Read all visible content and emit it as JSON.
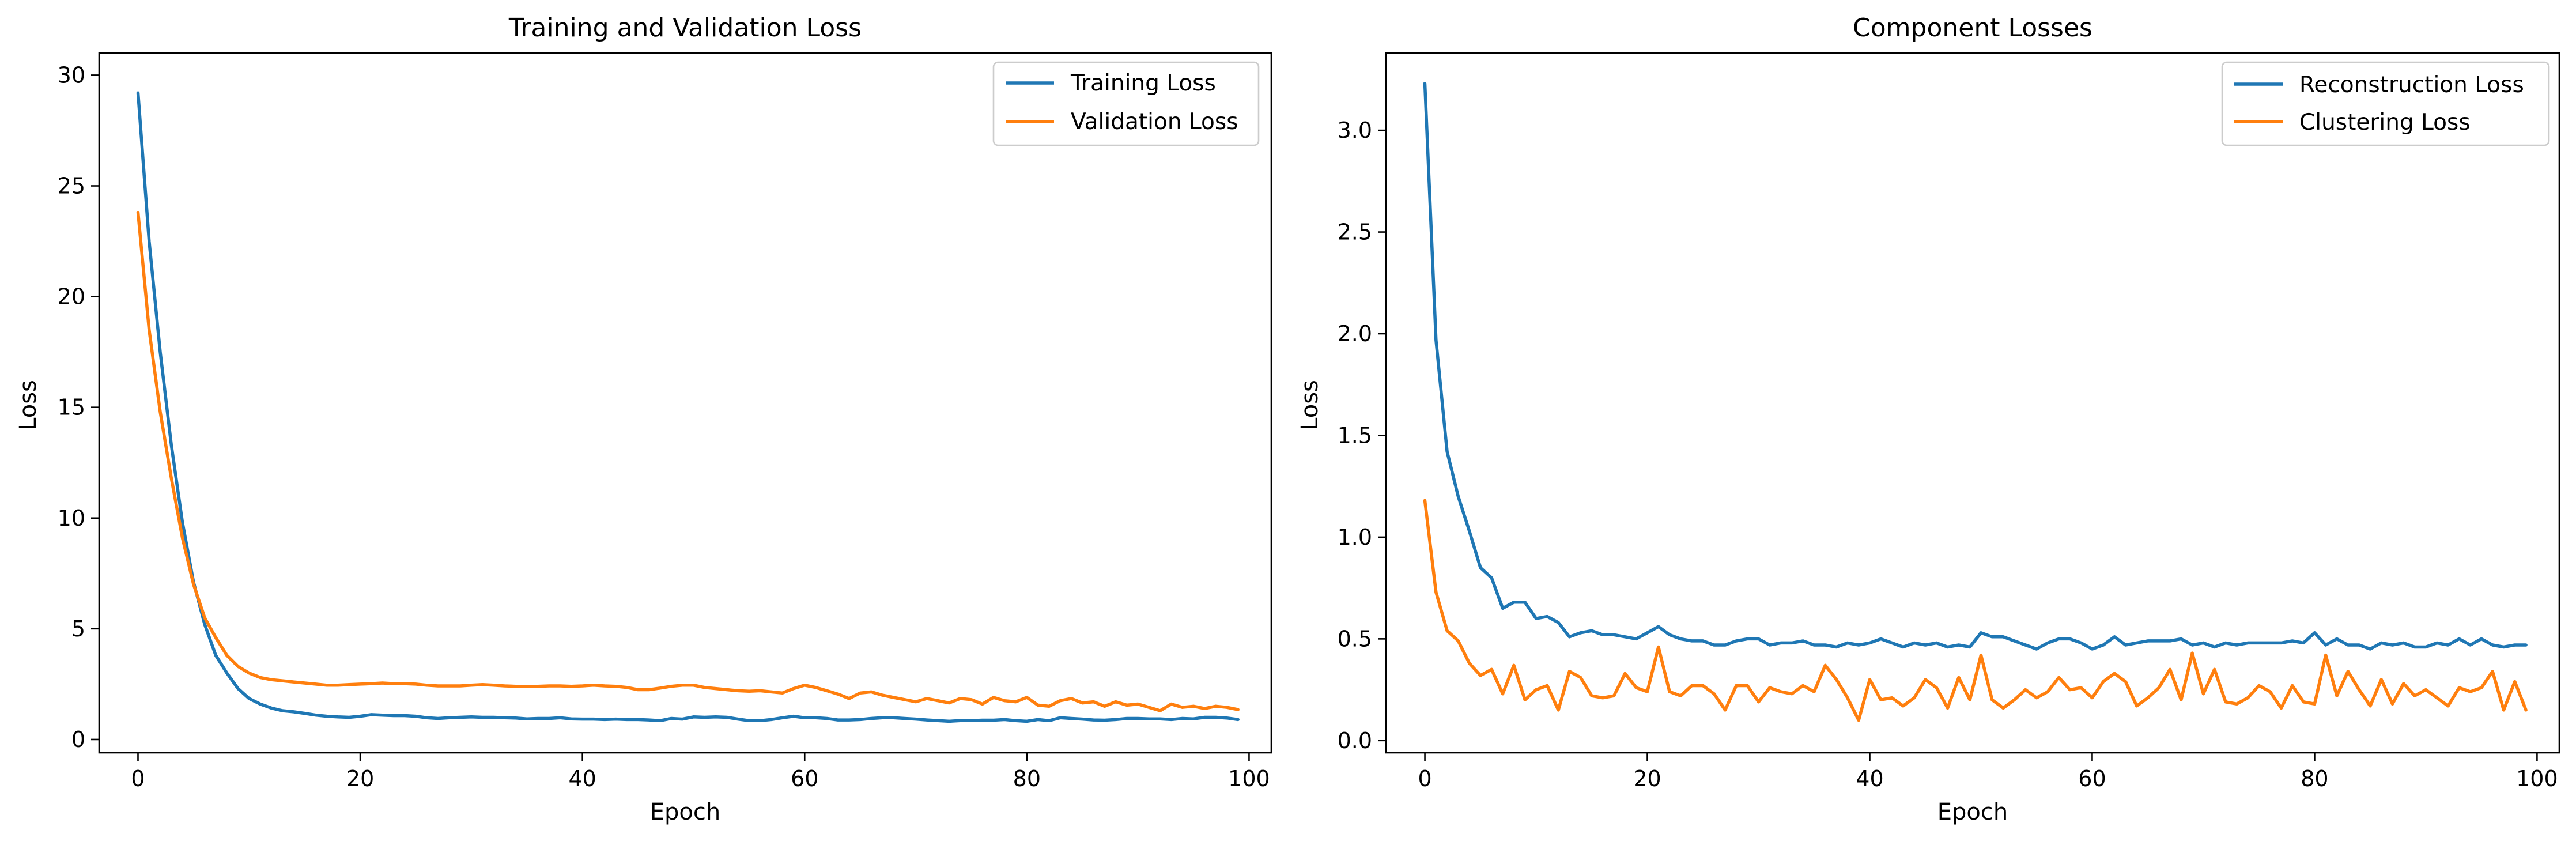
{
  "colors": {
    "blue": "#1f77b4",
    "orange": "#ff7f0e"
  },
  "chart_data": [
    {
      "type": "line",
      "title": "Training and Validation Loss",
      "xlabel": "Epoch",
      "ylabel": "Loss",
      "xlim": [
        -3.5,
        102
      ],
      "ylim": [
        -0.6,
        31
      ],
      "xticks": [
        0,
        20,
        40,
        60,
        80,
        100
      ],
      "xtick_labels": [
        "0",
        "20",
        "40",
        "60",
        "80",
        "100"
      ],
      "yticks": [
        0,
        5,
        10,
        15,
        20,
        25,
        30
      ],
      "ytick_labels": [
        "0",
        "5",
        "10",
        "15",
        "20",
        "25",
        "30"
      ],
      "grid": false,
      "legend_position": "top-right",
      "x": [
        0,
        1,
        2,
        3,
        4,
        5,
        6,
        7,
        8,
        9,
        10,
        11,
        12,
        13,
        14,
        15,
        16,
        17,
        18,
        19,
        20,
        21,
        22,
        23,
        24,
        25,
        26,
        27,
        28,
        29,
        30,
        31,
        32,
        33,
        34,
        35,
        36,
        37,
        38,
        39,
        40,
        41,
        42,
        43,
        44,
        45,
        46,
        47,
        48,
        49,
        50,
        51,
        52,
        53,
        54,
        55,
        56,
        57,
        58,
        59,
        60,
        61,
        62,
        63,
        64,
        65,
        66,
        67,
        68,
        69,
        70,
        71,
        72,
        73,
        74,
        75,
        76,
        77,
        78,
        79,
        80,
        81,
        82,
        83,
        84,
        85,
        86,
        87,
        88,
        89,
        90,
        91,
        92,
        93,
        94,
        95,
        96,
        97,
        98,
        99
      ],
      "series": [
        {
          "name": "Training Loss",
          "color": "#1f77b4",
          "values": [
            29.2,
            22.5,
            17.5,
            13.3,
            9.8,
            7.1,
            5.2,
            3.8,
            3.0,
            2.3,
            1.85,
            1.6,
            1.42,
            1.3,
            1.25,
            1.18,
            1.1,
            1.05,
            1.02,
            1.0,
            1.05,
            1.12,
            1.1,
            1.08,
            1.08,
            1.05,
            0.98,
            0.95,
            0.98,
            1.0,
            1.02,
            1.0,
            1.0,
            0.98,
            0.97,
            0.93,
            0.95,
            0.95,
            0.98,
            0.93,
            0.92,
            0.92,
            0.9,
            0.92,
            0.9,
            0.9,
            0.88,
            0.85,
            0.95,
            0.92,
            1.02,
            1.0,
            1.02,
            1.0,
            0.92,
            0.85,
            0.85,
            0.9,
            0.98,
            1.05,
            0.98,
            0.98,
            0.95,
            0.88,
            0.88,
            0.9,
            0.95,
            0.98,
            0.98,
            0.95,
            0.92,
            0.88,
            0.85,
            0.82,
            0.85,
            0.85,
            0.87,
            0.87,
            0.9,
            0.85,
            0.82,
            0.9,
            0.85,
            0.98,
            0.95,
            0.92,
            0.88,
            0.87,
            0.9,
            0.95,
            0.95,
            0.93,
            0.93,
            0.9,
            0.95,
            0.93,
            1.0,
            1.0,
            0.97,
            0.9
          ]
        },
        {
          "name": "Validation Loss",
          "color": "#ff7f0e",
          "values": [
            23.8,
            18.5,
            14.8,
            11.8,
            9.1,
            7.0,
            5.5,
            4.6,
            3.8,
            3.3,
            3.0,
            2.8,
            2.7,
            2.65,
            2.6,
            2.55,
            2.5,
            2.45,
            2.45,
            2.48,
            2.5,
            2.52,
            2.55,
            2.52,
            2.52,
            2.5,
            2.45,
            2.42,
            2.42,
            2.42,
            2.45,
            2.48,
            2.45,
            2.42,
            2.4,
            2.4,
            2.4,
            2.42,
            2.42,
            2.4,
            2.42,
            2.45,
            2.42,
            2.4,
            2.35,
            2.25,
            2.25,
            2.32,
            2.4,
            2.45,
            2.45,
            2.35,
            2.3,
            2.25,
            2.2,
            2.18,
            2.2,
            2.15,
            2.1,
            2.3,
            2.45,
            2.35,
            2.2,
            2.05,
            1.85,
            2.1,
            2.15,
            2.0,
            1.9,
            1.8,
            1.7,
            1.85,
            1.75,
            1.65,
            1.85,
            1.8,
            1.6,
            1.9,
            1.75,
            1.7,
            1.9,
            1.55,
            1.5,
            1.75,
            1.85,
            1.65,
            1.7,
            1.5,
            1.7,
            1.55,
            1.6,
            1.45,
            1.3,
            1.6,
            1.45,
            1.5,
            1.4,
            1.5,
            1.45,
            1.35
          ]
        }
      ]
    },
    {
      "type": "line",
      "title": "Component Losses",
      "xlabel": "Epoch",
      "ylabel": "Loss",
      "xlim": [
        -3.5,
        102
      ],
      "ylim": [
        -0.06,
        3.38
      ],
      "xticks": [
        0,
        20,
        40,
        60,
        80,
        100
      ],
      "xtick_labels": [
        "0",
        "20",
        "40",
        "60",
        "80",
        "100"
      ],
      "yticks": [
        0,
        0.5,
        1.0,
        1.5,
        2.0,
        2.5,
        3.0
      ],
      "ytick_labels": [
        "0.0",
        "0.5",
        "1.0",
        "1.5",
        "2.0",
        "2.5",
        "3.0"
      ],
      "grid": false,
      "legend_position": "top-right",
      "x": [
        0,
        1,
        2,
        3,
        4,
        5,
        6,
        7,
        8,
        9,
        10,
        11,
        12,
        13,
        14,
        15,
        16,
        17,
        18,
        19,
        20,
        21,
        22,
        23,
        24,
        25,
        26,
        27,
        28,
        29,
        30,
        31,
        32,
        33,
        34,
        35,
        36,
        37,
        38,
        39,
        40,
        41,
        42,
        43,
        44,
        45,
        46,
        47,
        48,
        49,
        50,
        51,
        52,
        53,
        54,
        55,
        56,
        57,
        58,
        59,
        60,
        61,
        62,
        63,
        64,
        65,
        66,
        67,
        68,
        69,
        70,
        71,
        72,
        73,
        74,
        75,
        76,
        77,
        78,
        79,
        80,
        81,
        82,
        83,
        84,
        85,
        86,
        87,
        88,
        89,
        90,
        91,
        92,
        93,
        94,
        95,
        96,
        97,
        98,
        99
      ],
      "series": [
        {
          "name": "Reconstruction Loss",
          "color": "#1f77b4",
          "values": [
            3.23,
            1.97,
            1.42,
            1.2,
            1.03,
            0.85,
            0.8,
            0.65,
            0.68,
            0.68,
            0.6,
            0.61,
            0.58,
            0.51,
            0.53,
            0.54,
            0.52,
            0.52,
            0.51,
            0.5,
            0.53,
            0.56,
            0.52,
            0.5,
            0.49,
            0.49,
            0.47,
            0.47,
            0.49,
            0.5,
            0.5,
            0.47,
            0.48,
            0.48,
            0.49,
            0.47,
            0.47,
            0.46,
            0.48,
            0.47,
            0.48,
            0.5,
            0.48,
            0.46,
            0.48,
            0.47,
            0.48,
            0.46,
            0.47,
            0.46,
            0.53,
            0.51,
            0.51,
            0.49,
            0.47,
            0.45,
            0.48,
            0.5,
            0.5,
            0.48,
            0.45,
            0.47,
            0.51,
            0.47,
            0.48,
            0.49,
            0.49,
            0.49,
            0.5,
            0.47,
            0.48,
            0.46,
            0.48,
            0.47,
            0.48,
            0.48,
            0.48,
            0.48,
            0.49,
            0.48,
            0.53,
            0.47,
            0.5,
            0.47,
            0.47,
            0.45,
            0.48,
            0.47,
            0.48,
            0.46,
            0.46,
            0.48,
            0.47,
            0.5,
            0.47,
            0.5,
            0.47,
            0.46,
            0.47,
            0.47
          ]
        },
        {
          "name": "Clustering Loss",
          "color": "#ff7f0e",
          "values": [
            1.18,
            0.73,
            0.54,
            0.49,
            0.38,
            0.32,
            0.35,
            0.23,
            0.37,
            0.2,
            0.25,
            0.27,
            0.15,
            0.34,
            0.31,
            0.22,
            0.21,
            0.22,
            0.33,
            0.26,
            0.24,
            0.46,
            0.24,
            0.22,
            0.27,
            0.27,
            0.23,
            0.15,
            0.27,
            0.27,
            0.19,
            0.26,
            0.24,
            0.23,
            0.27,
            0.24,
            0.37,
            0.3,
            0.21,
            0.1,
            0.3,
            0.2,
            0.21,
            0.17,
            0.21,
            0.3,
            0.26,
            0.16,
            0.31,
            0.2,
            0.42,
            0.2,
            0.16,
            0.2,
            0.25,
            0.21,
            0.24,
            0.31,
            0.25,
            0.26,
            0.21,
            0.29,
            0.33,
            0.29,
            0.17,
            0.21,
            0.26,
            0.35,
            0.2,
            0.43,
            0.23,
            0.35,
            0.19,
            0.18,
            0.21,
            0.27,
            0.24,
            0.16,
            0.27,
            0.19,
            0.18,
            0.42,
            0.22,
            0.34,
            0.25,
            0.17,
            0.3,
            0.18,
            0.28,
            0.22,
            0.25,
            0.21,
            0.17,
            0.26,
            0.24,
            0.26,
            0.34,
            0.15,
            0.29,
            0.15
          ]
        }
      ]
    }
  ]
}
